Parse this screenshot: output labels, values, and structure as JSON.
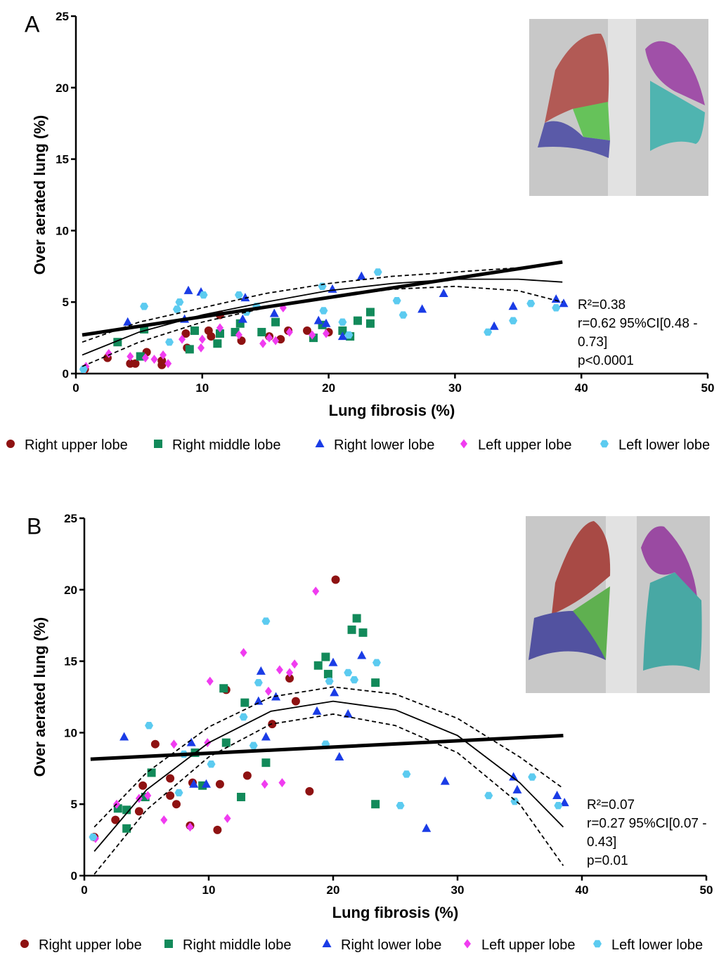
{
  "chart_data": [
    {
      "type": "scatter",
      "panel": "A",
      "xlabel": "Lung fibrosis (%)",
      "ylabel": "Over aerated lung (%)",
      "xlim": [
        0,
        50
      ],
      "xticks": [
        0,
        10,
        20,
        30,
        40,
        50
      ],
      "ylim": [
        0,
        25
      ],
      "yticks": [
        0,
        5,
        10,
        15,
        20,
        25
      ],
      "annotations": [
        "R²=0.38",
        "r=0.62 95%CI[0.48 -",
        "0.73]",
        "p<0.0001"
      ],
      "series": [
        {
          "name": "Right upper lobe",
          "color": "#8e1212",
          "marker": "circle",
          "x": [
            0.7,
            2.5,
            4.3,
            4.7,
            5.6,
            6.8,
            6.8,
            8.7,
            8.8,
            10.5,
            10.7,
            11.4,
            13.1,
            15.3,
            16.2,
            16.8,
            18.3,
            20
          ],
          "values": [
            0.3,
            1.1,
            0.7,
            0.7,
            1.5,
            0.6,
            0.9,
            2.8,
            1.8,
            3,
            2.6,
            4.1,
            2.3,
            2.6,
            2.4,
            3,
            3,
            2.9
          ]
        },
        {
          "name": "Right middle lobe",
          "color": "#128a5a",
          "marker": "square",
          "x": [
            3.3,
            5.1,
            5.4,
            9,
            9.4,
            11.2,
            11.4,
            12.6,
            13,
            14.7,
            15.8,
            18.8,
            19.5,
            21.1,
            21.7,
            22.3,
            23.3,
            23.3
          ],
          "values": [
            2.2,
            1.2,
            3.1,
            1.7,
            3,
            2.1,
            2.8,
            2.9,
            3.5,
            2.9,
            3.6,
            2.5,
            3.4,
            3,
            2.6,
            3.7,
            3.5,
            4.3
          ]
        },
        {
          "name": "Right lower lobe",
          "color": "#1a3ce6",
          "marker": "triangle",
          "x": [
            4.1,
            8.9,
            9.9,
            8.6,
            13.2,
            13.4,
            15.7,
            19.2,
            19.8,
            21.1,
            20.3,
            22.6,
            27.4,
            29.1,
            33.1,
            34.6,
            38,
            38.6
          ],
          "values": [
            3.6,
            5.8,
            5.7,
            3.8,
            3.8,
            5.3,
            4.2,
            3.7,
            3.5,
            2.6,
            5.9,
            6.8,
            4.5,
            5.6,
            3.3,
            4.7,
            5.2,
            4.9
          ]
        },
        {
          "name": "Left upper lobe",
          "color": "#f03cf0",
          "marker": "diamond",
          "x": [
            0.8,
            2.6,
            4.3,
            5.5,
            6.2,
            6.9,
            7.3,
            8.4,
            9.9,
            10,
            11.4,
            12.9,
            14.8,
            15.3,
            15.8,
            16.4,
            16.9,
            18.7,
            19.8
          ],
          "values": [
            0.5,
            1.4,
            1.2,
            1.1,
            1,
            1.3,
            0.7,
            2.4,
            1.8,
            2.4,
            3.2,
            2.7,
            2.1,
            2.5,
            2.3,
            4.6,
            2.9,
            2.7,
            2.8
          ]
        },
        {
          "name": "Left lower lobe",
          "color": "#5ccbf0",
          "marker": "hexagon",
          "x": [
            0.6,
            5.4,
            7.4,
            8,
            8.2,
            10.1,
            12.9,
            13.5,
            14.3,
            19.5,
            19.6,
            21.1,
            21.6,
            23.9,
            25.4,
            25.9,
            32.6,
            34.6,
            36,
            38
          ],
          "values": [
            0.3,
            4.7,
            2.2,
            4.5,
            5,
            5.5,
            5.5,
            4.3,
            4.7,
            6.1,
            4.4,
            3.6,
            2.7,
            7.1,
            5.1,
            4.1,
            2.9,
            3.7,
            4.9,
            4.6
          ]
        }
      ],
      "fits": [
        {
          "style": "linear",
          "x": [
            0.5,
            38.5
          ],
          "values": [
            2.7,
            7.8
          ]
        },
        {
          "style": "quadratic",
          "x": [
            0.5,
            5,
            10,
            15,
            20,
            25,
            30,
            35,
            38.5
          ],
          "values": [
            1.3,
            2.9,
            4.1,
            5.0,
            5.8,
            6.3,
            6.6,
            6.6,
            6.4
          ]
        },
        {
          "style": "ci",
          "x": [
            0.5,
            5,
            10,
            15,
            20,
            25,
            30,
            35,
            38.5
          ],
          "values": [
            2.2,
            3.6,
            4.6,
            5.6,
            6.3,
            6.8,
            7.1,
            7.4,
            7.8
          ]
        },
        {
          "style": "ci",
          "x": [
            0.5,
            5,
            10,
            15,
            20,
            25,
            30,
            35,
            38.5
          ],
          "values": [
            0.5,
            2.2,
            3.6,
            4.6,
            5.3,
            5.9,
            6.1,
            5.8,
            5.0
          ]
        }
      ]
    },
    {
      "type": "scatter",
      "panel": "B",
      "xlabel": "Lung fibrosis (%)",
      "ylabel": "Over aerated lung (%)",
      "xlim": [
        0,
        50
      ],
      "xticks": [
        0,
        10,
        20,
        30,
        40,
        50
      ],
      "ylim": [
        0,
        25
      ],
      "yticks": [
        0,
        5,
        10,
        15,
        20,
        25
      ],
      "annotations": [
        "R²=0.07",
        "r=0.27 95%CI[0.07 -",
        "0.43]",
        "p=0.01"
      ],
      "series": [
        {
          "name": "Right upper lobe",
          "color": "#8e1212",
          "marker": "circle",
          "x": [
            0.8,
            2.5,
            4.4,
            4.7,
            5.7,
            6.9,
            6.9,
            7.4,
            8.5,
            8.7,
            10.7,
            10.9,
            11.4,
            13.1,
            15.1,
            17,
            16.5,
            18.1,
            20.2
          ],
          "values": [
            2.7,
            3.9,
            4.5,
            6.3,
            9.2,
            6.8,
            5.6,
            5,
            3.5,
            6.5,
            3.2,
            6.4,
            13,
            7,
            10.6,
            12.2,
            13.8,
            5.9,
            20.7
          ]
        },
        {
          "name": "Right middle lobe",
          "color": "#128a5a",
          "marker": "square",
          "x": [
            2.7,
            3.4,
            3.4,
            4.9,
            5.4,
            8.9,
            9.5,
            11.2,
            11.4,
            12.6,
            12.9,
            14.6,
            18.8,
            19.4,
            19.6,
            21.5,
            21.9,
            22.4,
            23.4,
            23.4
          ],
          "values": [
            4.7,
            4.6,
            3.3,
            5.5,
            7.2,
            8.6,
            6.3,
            13.1,
            9.3,
            5.5,
            12.1,
            7.9,
            14.7,
            15.3,
            14.1,
            17.2,
            18,
            17,
            13.5,
            5
          ]
        },
        {
          "name": "Right lower lobe",
          "color": "#1a3ce6",
          "marker": "triangle",
          "x": [
            3.2,
            8.6,
            8.8,
            9.8,
            14,
            14.2,
            14.6,
            15.4,
            18.7,
            20,
            20.1,
            20.5,
            21.2,
            22.3,
            27.5,
            29,
            34.5,
            34.8,
            38,
            38.6
          ],
          "values": [
            9.7,
            9.3,
            6.4,
            6.4,
            12.2,
            14.3,
            9.7,
            12.5,
            11.5,
            14.9,
            12.8,
            8.3,
            11.3,
            15.4,
            3.3,
            6.6,
            6.9,
            6,
            5.6,
            5.1
          ]
        },
        {
          "name": "Left upper lobe",
          "color": "#f03cf0",
          "marker": "diamond",
          "x": [
            0.9,
            2.6,
            4.4,
            5.1,
            6.4,
            7.2,
            8.5,
            9.9,
            10.1,
            11.5,
            12.8,
            14.5,
            14.8,
            15.7,
            15.9,
            16.5,
            16.9,
            18.6
          ],
          "values": [
            2.6,
            5,
            5.4,
            5.6,
            3.9,
            9.2,
            3.4,
            9.3,
            13.6,
            4,
            15.6,
            6.4,
            12.9,
            14.4,
            6.5,
            14.2,
            14.8,
            19.9
          ]
        },
        {
          "name": "Left lower lobe",
          "color": "#5ccbf0",
          "marker": "hexagon",
          "x": [
            0.7,
            5.2,
            7.6,
            8,
            10.2,
            12.8,
            13.6,
            14,
            14.6,
            19.4,
            19.7,
            21.2,
            21.7,
            23.5,
            25.4,
            25.9,
            32.5,
            34.6,
            36,
            38.1
          ],
          "values": [
            2.7,
            10.5,
            5.8,
            8.5,
            7.8,
            11.1,
            9.1,
            13.5,
            17.8,
            9.2,
            13.6,
            14.2,
            13.7,
            14.9,
            4.9,
            7.1,
            5.6,
            5.2,
            6.9,
            4.9
          ]
        }
      ],
      "fits": [
        {
          "style": "linear",
          "x": [
            0.5,
            38.5
          ],
          "values": [
            8.15,
            9.8
          ]
        },
        {
          "style": "quadratic",
          "x": [
            0.8,
            5,
            10,
            15,
            20,
            25,
            30,
            35,
            38.5
          ],
          "values": [
            1.7,
            6.0,
            9.3,
            11.5,
            12.2,
            11.6,
            9.8,
            6.5,
            3.4
          ]
        },
        {
          "style": "ci",
          "x": [
            0.8,
            5,
            10,
            15,
            20,
            25,
            30,
            35,
            38.5
          ],
          "values": [
            3.4,
            7.2,
            10.4,
            12.5,
            13.2,
            12.7,
            11.0,
            8.3,
            6.1
          ]
        },
        {
          "style": "ci",
          "x": [
            0.8,
            5,
            10,
            15,
            20,
            25,
            30,
            35,
            38.5
          ],
          "values": [
            0.1,
            4.6,
            8.3,
            10.6,
            11.3,
            10.5,
            8.6,
            5.0,
            0.7
          ]
        }
      ]
    }
  ]
}
